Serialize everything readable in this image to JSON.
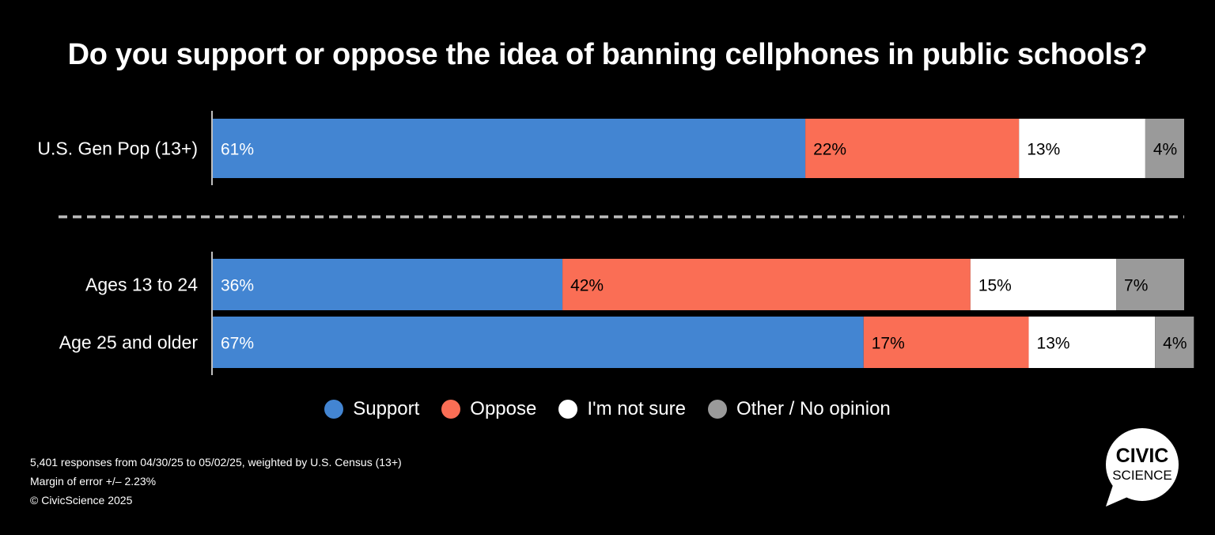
{
  "chart_data": {
    "type": "bar",
    "orientation": "horizontal",
    "stacked": true,
    "title": "Do you support or oppose the idea of banning cellphones in public schools?",
    "categories": [
      "U.S. Gen Pop (13+)",
      "Ages 13 to 24",
      "Age 25 and older"
    ],
    "series": [
      {
        "name": "Support",
        "color": "#4385d2",
        "label_color": "#ffffff",
        "values": [
          61,
          36,
          67
        ],
        "labels": [
          "61%",
          "36%",
          "67%"
        ]
      },
      {
        "name": "Oppose",
        "color": "#fa6e55",
        "label_color": "#000000",
        "values": [
          22,
          42,
          17
        ],
        "labels": [
          "22%",
          "42%",
          "17%"
        ]
      },
      {
        "name": "I'm not sure",
        "color": "#ffffff",
        "label_color": "#000000",
        "values": [
          13,
          15,
          13
        ],
        "labels": [
          "13%",
          "15%",
          "13%"
        ]
      },
      {
        "name": "Other / No opinion",
        "color": "#9a9a9a",
        "label_color": "#000000",
        "values": [
          4,
          7,
          4
        ],
        "labels": [
          "4%",
          "7%",
          "4%"
        ]
      }
    ],
    "xlim": [
      0,
      100
    ],
    "grid": false,
    "legend_position": "bottom",
    "group_divider": "dashed line between first category and the age groups"
  },
  "footnotes": [
    "5,401 responses from 04/30/25 to 05/02/25, weighted by U.S. Census (13+)",
    "Margin of error +/– 2.23%",
    "© CivicScience 2025"
  ],
  "logo": {
    "line1": "CIVIC",
    "line2": "SCIENCE"
  }
}
